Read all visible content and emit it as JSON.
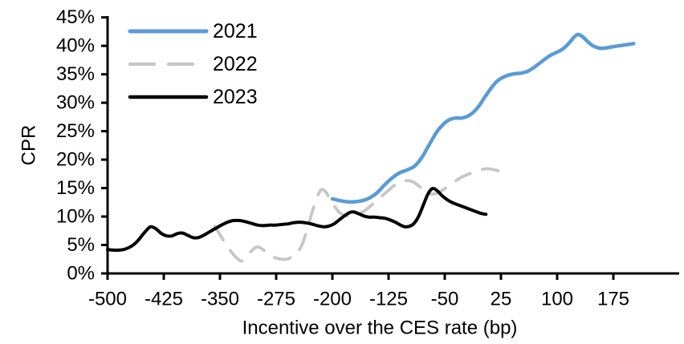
{
  "window": {
    "background": "#ffffff"
  },
  "chart_data": {
    "type": "line",
    "title": "",
    "xlabel": "Incentive over the CES rate (bp)",
    "ylabel": "CPR",
    "xlim": [
      -500,
      262
    ],
    "ylim": [
      0,
      45
    ],
    "x_ticks": [
      -500,
      -425,
      -350,
      -275,
      -200,
      -125,
      -50,
      25,
      100,
      175
    ],
    "y_ticks": [
      0,
      5,
      10,
      15,
      20,
      25,
      30,
      35,
      40,
      45
    ],
    "y_tick_suffix": "%",
    "grid": false,
    "axis_color": "#000000",
    "legend_position": "top-left-inside",
    "series": [
      {
        "name": "2021",
        "color": "#5B9BD5",
        "dash": "solid",
        "width": 4.5,
        "points": [
          [
            -200,
            13.1
          ],
          [
            -190,
            12.8
          ],
          [
            -180,
            12.6
          ],
          [
            -170,
            12.6
          ],
          [
            -160,
            12.8
          ],
          [
            -150,
            13.3
          ],
          [
            -140,
            14.2
          ],
          [
            -130,
            15.6
          ],
          [
            -120,
            16.8
          ],
          [
            -110,
            17.7
          ],
          [
            -100,
            18.2
          ],
          [
            -90,
            18.9
          ],
          [
            -80,
            20.5
          ],
          [
            -70,
            22.8
          ],
          [
            -60,
            25.0
          ],
          [
            -52,
            26.2
          ],
          [
            -44,
            27.0
          ],
          [
            -36,
            27.3
          ],
          [
            -28,
            27.3
          ],
          [
            -20,
            27.6
          ],
          [
            -12,
            28.3
          ],
          [
            -4,
            29.5
          ],
          [
            4,
            31.1
          ],
          [
            12,
            32.6
          ],
          [
            20,
            33.8
          ],
          [
            28,
            34.5
          ],
          [
            36,
            34.9
          ],
          [
            44,
            35.1
          ],
          [
            52,
            35.2
          ],
          [
            60,
            35.5
          ],
          [
            68,
            36.1
          ],
          [
            76,
            36.9
          ],
          [
            84,
            37.7
          ],
          [
            92,
            38.4
          ],
          [
            100,
            38.9
          ],
          [
            108,
            39.5
          ],
          [
            116,
            40.5
          ],
          [
            123,
            41.6
          ],
          [
            128,
            42.0
          ],
          [
            134,
            41.6
          ],
          [
            141,
            40.7
          ],
          [
            148,
            40.0
          ],
          [
            156,
            39.6
          ],
          [
            164,
            39.6
          ],
          [
            172,
            39.8
          ],
          [
            182,
            40.0
          ],
          [
            192,
            40.2
          ],
          [
            202,
            40.4
          ]
        ]
      },
      {
        "name": "2022",
        "color": "#C6C6C6",
        "dash": "dashed",
        "width": 3.8,
        "points": [
          [
            -357,
            8.3
          ],
          [
            -350,
            6.8
          ],
          [
            -343,
            5.3
          ],
          [
            -336,
            4.0
          ],
          [
            -329,
            2.9
          ],
          [
            -322,
            2.2
          ],
          [
            -316,
            2.6
          ],
          [
            -309,
            3.8
          ],
          [
            -302,
            4.6
          ],
          [
            -296,
            4.5
          ],
          [
            -289,
            3.8
          ],
          [
            -282,
            3.1
          ],
          [
            -275,
            2.7
          ],
          [
            -268,
            2.5
          ],
          [
            -261,
            2.5
          ],
          [
            -254,
            2.9
          ],
          [
            -247,
            3.6
          ],
          [
            -240,
            5.2
          ],
          [
            -233,
            8.0
          ],
          [
            -226,
            11.2
          ],
          [
            -220,
            13.5
          ],
          [
            -215,
            14.7
          ],
          [
            -210,
            14.5
          ],
          [
            -204,
            13.3
          ],
          [
            -198,
            12.0
          ],
          [
            -192,
            10.9
          ],
          [
            -186,
            10.3
          ],
          [
            -180,
            10.1
          ],
          [
            -174,
            10.1
          ],
          [
            -168,
            10.3
          ],
          [
            -161,
            10.7
          ],
          [
            -154,
            11.3
          ],
          [
            -147,
            12.1
          ],
          [
            -140,
            12.9
          ],
          [
            -133,
            13.7
          ],
          [
            -126,
            14.5
          ],
          [
            -119,
            15.3
          ],
          [
            -112,
            15.9
          ],
          [
            -105,
            16.2
          ],
          [
            -98,
            16.3
          ],
          [
            -91,
            16.0
          ],
          [
            -84,
            15.3
          ],
          [
            -77,
            14.5
          ],
          [
            -70,
            14.0
          ],
          [
            -63,
            14.0
          ],
          [
            -56,
            14.4
          ],
          [
            -49,
            15.0
          ],
          [
            -42,
            15.7
          ],
          [
            -35,
            16.3
          ],
          [
            -28,
            16.9
          ],
          [
            -21,
            17.3
          ],
          [
            -14,
            17.7
          ],
          [
            -7,
            18.1
          ],
          [
            0,
            18.3
          ],
          [
            7,
            18.4
          ],
          [
            14,
            18.3
          ],
          [
            20,
            18.1
          ],
          [
            25,
            17.8
          ]
        ]
      },
      {
        "name": "2023",
        "color": "#000000",
        "dash": "solid",
        "width": 4,
        "points": [
          [
            -500,
            4.2
          ],
          [
            -492,
            4.1
          ],
          [
            -484,
            4.1
          ],
          [
            -476,
            4.3
          ],
          [
            -468,
            4.8
          ],
          [
            -460,
            5.7
          ],
          [
            -452,
            7.0
          ],
          [
            -445,
            8.0
          ],
          [
            -441,
            8.2
          ],
          [
            -435,
            7.8
          ],
          [
            -428,
            7.0
          ],
          [
            -421,
            6.6
          ],
          [
            -414,
            6.6
          ],
          [
            -407,
            7.0
          ],
          [
            -400,
            7.1
          ],
          [
            -393,
            6.7
          ],
          [
            -386,
            6.3
          ],
          [
            -379,
            6.3
          ],
          [
            -372,
            6.7
          ],
          [
            -364,
            7.3
          ],
          [
            -356,
            7.9
          ],
          [
            -348,
            8.5
          ],
          [
            -340,
            9.0
          ],
          [
            -332,
            9.3
          ],
          [
            -324,
            9.3
          ],
          [
            -316,
            9.1
          ],
          [
            -308,
            8.8
          ],
          [
            -300,
            8.5
          ],
          [
            -292,
            8.4
          ],
          [
            -284,
            8.5
          ],
          [
            -276,
            8.5
          ],
          [
            -268,
            8.6
          ],
          [
            -260,
            8.7
          ],
          [
            -252,
            8.9
          ],
          [
            -244,
            9.0
          ],
          [
            -236,
            8.9
          ],
          [
            -228,
            8.7
          ],
          [
            -220,
            8.4
          ],
          [
            -212,
            8.2
          ],
          [
            -205,
            8.3
          ],
          [
            -198,
            8.7
          ],
          [
            -191,
            9.4
          ],
          [
            -184,
            10.1
          ],
          [
            -177,
            10.7
          ],
          [
            -171,
            10.8
          ],
          [
            -165,
            10.5
          ],
          [
            -158,
            10.1
          ],
          [
            -151,
            9.9
          ],
          [
            -144,
            9.9
          ],
          [
            -137,
            9.8
          ],
          [
            -130,
            9.7
          ],
          [
            -123,
            9.4
          ],
          [
            -116,
            9.0
          ],
          [
            -109,
            8.5
          ],
          [
            -103,
            8.2
          ],
          [
            -97,
            8.3
          ],
          [
            -91,
            8.8
          ],
          [
            -85,
            10.0
          ],
          [
            -79,
            11.9
          ],
          [
            -73,
            13.8
          ],
          [
            -68,
            14.8
          ],
          [
            -64,
            14.9
          ],
          [
            -59,
            14.4
          ],
          [
            -53,
            13.6
          ],
          [
            -46,
            12.9
          ],
          [
            -39,
            12.4
          ],
          [
            -31,
            12.0
          ],
          [
            -23,
            11.6
          ],
          [
            -15,
            11.2
          ],
          [
            -7,
            10.8
          ],
          [
            0,
            10.5
          ],
          [
            5,
            10.4
          ]
        ]
      }
    ]
  }
}
